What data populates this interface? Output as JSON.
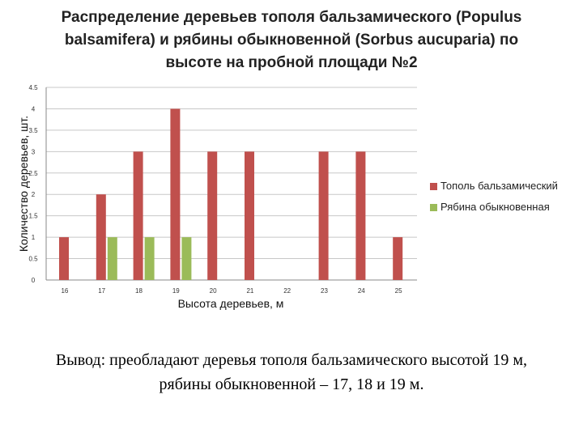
{
  "title": "Распределение деревьев тополя бальзамического (Populus balsamifera) и рябины обыкновенной (Sorbus aucuparia) по высоте на пробной площади №2",
  "conclusion_line1": "Вывод: преобладают деревья тополя бальзамического высотой 19 м,",
  "conclusion_line2": "рябины обыкновенной – 17, 18 и 19 м.",
  "chart_data": {
    "type": "bar",
    "title": "Распределение деревьев тополя бальзамического (Populus balsamifera) и рябины обыкновенной (Sorbus aucuparia) по высоте на пробной площади №2",
    "xlabel": "Высота деревьев, м",
    "ylabel": "Количество деревьев, шт.",
    "categories": [
      "16",
      "17",
      "18",
      "19",
      "20",
      "21",
      "22",
      "23",
      "24",
      "25"
    ],
    "ylim": [
      0,
      4.5
    ],
    "yticks": [
      "0",
      "0.5",
      "1",
      "1.5",
      "2",
      "2.5",
      "3",
      "3.5",
      "4",
      "4.5"
    ],
    "grid": true,
    "legend_position": "right",
    "series": [
      {
        "name": "Тополь бальзамический",
        "color": "#c0504d",
        "values": [
          1,
          2,
          3,
          4,
          3,
          3,
          0,
          3,
          3,
          1
        ]
      },
      {
        "name": "Рябина обыкновенная",
        "color": "#9bbb59",
        "values": [
          0,
          1,
          1,
          1,
          0,
          0,
          0,
          0,
          0,
          0
        ]
      }
    ]
  }
}
